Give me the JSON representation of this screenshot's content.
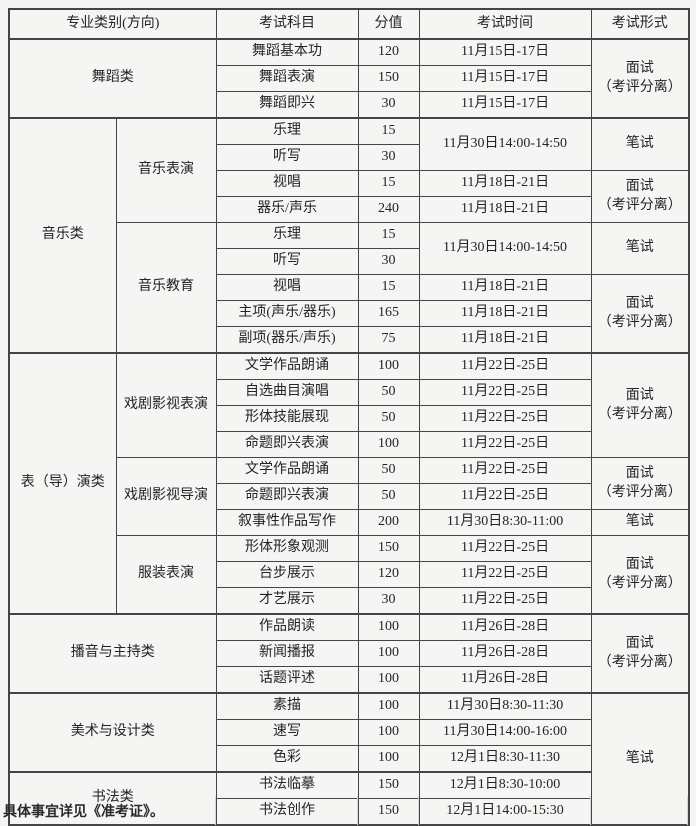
{
  "page": {
    "background_color": "#f5f5f3",
    "border_color": "#454545",
    "light_grid_color": "#d6d6d6",
    "text_color": "#242424"
  },
  "table": {
    "header": [
      {
        "col": "category",
        "text": "专业类别(方向)",
        "colspan": 2
      },
      {
        "col": "subject",
        "text": "考试科目"
      },
      {
        "col": "score",
        "text": "分值"
      },
      {
        "col": "time",
        "text": "考试时间"
      },
      {
        "col": "format",
        "text": "考试形式"
      }
    ],
    "rows": [
      {
        "group": true,
        "cells": [
          {
            "col": "category",
            "text": "舞蹈类",
            "colspan": 2,
            "rowspan": 3
          },
          {
            "col": "subject",
            "text": "舞蹈基本功"
          },
          {
            "col": "score",
            "text": "120"
          },
          {
            "col": "time",
            "text": "11月15日-17日"
          },
          {
            "col": "format",
            "text": "面试\n（考评分离）",
            "rowspan": 3
          }
        ]
      },
      {
        "cells": [
          {
            "col": "subject",
            "text": "舞蹈表演"
          },
          {
            "col": "score",
            "text": "150"
          },
          {
            "col": "time",
            "text": "11月15日-17日"
          }
        ]
      },
      {
        "cells": [
          {
            "col": "subject",
            "text": "舞蹈即兴"
          },
          {
            "col": "score",
            "text": "30"
          },
          {
            "col": "time",
            "text": "11月15日-17日"
          }
        ]
      },
      {
        "group": true,
        "cells": [
          {
            "col": "category",
            "text": "音乐类",
            "rowspan": 9
          },
          {
            "col": "direction",
            "text": "音乐表演",
            "rowspan": 4
          },
          {
            "col": "subject",
            "text": "乐理"
          },
          {
            "col": "score",
            "text": "15"
          },
          {
            "col": "time",
            "text": "11月30日14:00-14:50",
            "rowspan": 2
          },
          {
            "col": "format",
            "text": "笔试",
            "rowspan": 2
          }
        ]
      },
      {
        "cells": [
          {
            "col": "subject",
            "text": "听写"
          },
          {
            "col": "score",
            "text": "30"
          }
        ]
      },
      {
        "cells": [
          {
            "col": "subject",
            "text": "视唱"
          },
          {
            "col": "score",
            "text": "15"
          },
          {
            "col": "time",
            "text": "11月18日-21日"
          },
          {
            "col": "format",
            "text": "面试\n（考评分离）",
            "rowspan": 2
          }
        ]
      },
      {
        "cells": [
          {
            "col": "subject",
            "text": "器乐/声乐"
          },
          {
            "col": "score",
            "text": "240"
          },
          {
            "col": "time",
            "text": "11月18日-21日"
          }
        ]
      },
      {
        "cells": [
          {
            "col": "direction",
            "text": "音乐教育",
            "rowspan": 5
          },
          {
            "col": "subject",
            "text": "乐理"
          },
          {
            "col": "score",
            "text": "15"
          },
          {
            "col": "time",
            "text": "11月30日14:00-14:50",
            "rowspan": 2
          },
          {
            "col": "format",
            "text": "笔试",
            "rowspan": 2
          }
        ]
      },
      {
        "cells": [
          {
            "col": "subject",
            "text": "听写"
          },
          {
            "col": "score",
            "text": "30"
          }
        ]
      },
      {
        "cells": [
          {
            "col": "subject",
            "text": "视唱"
          },
          {
            "col": "score",
            "text": "15"
          },
          {
            "col": "time",
            "text": "11月18日-21日"
          },
          {
            "col": "format",
            "text": "面试\n（考评分离）",
            "rowspan": 3
          }
        ]
      },
      {
        "cells": [
          {
            "col": "subject",
            "text": "主项(声乐/器乐)"
          },
          {
            "col": "score",
            "text": "165"
          },
          {
            "col": "time",
            "text": "11月18日-21日"
          }
        ]
      },
      {
        "cells": [
          {
            "col": "subject",
            "text": "副项(器乐/声乐)"
          },
          {
            "col": "score",
            "text": "75"
          },
          {
            "col": "time",
            "text": "11月18日-21日"
          }
        ]
      },
      {
        "group": true,
        "cells": [
          {
            "col": "category",
            "text": "表（导）演类",
            "rowspan": 10
          },
          {
            "col": "direction",
            "text": "戏剧影视表演",
            "rowspan": 4
          },
          {
            "col": "subject",
            "text": "文学作品朗诵"
          },
          {
            "col": "score",
            "text": "100"
          },
          {
            "col": "time",
            "text": "11月22日-25日"
          },
          {
            "col": "format",
            "text": "面试\n（考评分离）",
            "rowspan": 4
          }
        ]
      },
      {
        "cells": [
          {
            "col": "subject",
            "text": "自选曲目演唱"
          },
          {
            "col": "score",
            "text": "50"
          },
          {
            "col": "time",
            "text": "11月22日-25日"
          }
        ]
      },
      {
        "cells": [
          {
            "col": "subject",
            "text": "形体技能展现"
          },
          {
            "col": "score",
            "text": "50"
          },
          {
            "col": "time",
            "text": "11月22日-25日"
          }
        ]
      },
      {
        "cells": [
          {
            "col": "subject",
            "text": "命题即兴表演"
          },
          {
            "col": "score",
            "text": "100"
          },
          {
            "col": "time",
            "text": "11月22日-25日"
          }
        ]
      },
      {
        "cells": [
          {
            "col": "direction",
            "text": "戏剧影视导演",
            "rowspan": 3
          },
          {
            "col": "subject",
            "text": "文学作品朗诵"
          },
          {
            "col": "score",
            "text": "50"
          },
          {
            "col": "time",
            "text": "11月22日-25日"
          },
          {
            "col": "format",
            "text": "面试\n（考评分离）",
            "rowspan": 2
          }
        ]
      },
      {
        "cells": [
          {
            "col": "subject",
            "text": "命题即兴表演"
          },
          {
            "col": "score",
            "text": "50"
          },
          {
            "col": "time",
            "text": "11月22日-25日"
          }
        ]
      },
      {
        "cells": [
          {
            "col": "subject",
            "text": "叙事性作品写作"
          },
          {
            "col": "score",
            "text": "200"
          },
          {
            "col": "time",
            "text": "11月30日8:30-11:00"
          },
          {
            "col": "format",
            "text": "笔试"
          }
        ]
      },
      {
        "cells": [
          {
            "col": "direction",
            "text": "服装表演",
            "rowspan": 3
          },
          {
            "col": "subject",
            "text": "形体形象观测"
          },
          {
            "col": "score",
            "text": "150"
          },
          {
            "col": "time",
            "text": "11月22日-25日"
          },
          {
            "col": "format",
            "text": "面试\n（考评分离）",
            "rowspan": 3
          }
        ]
      },
      {
        "cells": [
          {
            "col": "subject",
            "text": "台步展示"
          },
          {
            "col": "score",
            "text": "120"
          },
          {
            "col": "time",
            "text": "11月22日-25日"
          }
        ]
      },
      {
        "cells": [
          {
            "col": "subject",
            "text": "才艺展示"
          },
          {
            "col": "score",
            "text": "30"
          },
          {
            "col": "time",
            "text": "11月22日-25日"
          }
        ]
      },
      {
        "group": true,
        "cells": [
          {
            "col": "category",
            "text": "播音与主持类",
            "colspan": 2,
            "rowspan": 3
          },
          {
            "col": "subject",
            "text": "作品朗读"
          },
          {
            "col": "score",
            "text": "100"
          },
          {
            "col": "time",
            "text": "11月26日-28日"
          },
          {
            "col": "format",
            "text": "面试\n（考评分离）",
            "rowspan": 3
          }
        ]
      },
      {
        "cells": [
          {
            "col": "subject",
            "text": "新闻播报"
          },
          {
            "col": "score",
            "text": "100"
          },
          {
            "col": "time",
            "text": "11月26日-28日"
          }
        ]
      },
      {
        "cells": [
          {
            "col": "subject",
            "text": "话题评述"
          },
          {
            "col": "score",
            "text": "100"
          },
          {
            "col": "time",
            "text": "11月26日-28日"
          }
        ]
      },
      {
        "group": true,
        "cells": [
          {
            "col": "category",
            "text": "美术与设计类",
            "colspan": 2,
            "rowspan": 3
          },
          {
            "col": "subject",
            "text": "素描"
          },
          {
            "col": "score",
            "text": "100"
          },
          {
            "col": "time",
            "text": "11月30日8:30-11:30"
          },
          {
            "col": "format",
            "text": "笔试",
            "rowspan": 5
          }
        ]
      },
      {
        "cells": [
          {
            "col": "subject",
            "text": "速写"
          },
          {
            "col": "score",
            "text": "100"
          },
          {
            "col": "time",
            "text": "11月30日14:00-16:00"
          }
        ]
      },
      {
        "cells": [
          {
            "col": "subject",
            "text": "色彩"
          },
          {
            "col": "score",
            "text": "100"
          },
          {
            "col": "time",
            "text": "12月1日8:30-11:30"
          }
        ]
      },
      {
        "group": true,
        "cells": [
          {
            "col": "category",
            "text": "书法类",
            "colspan": 2,
            "rowspan": 2
          },
          {
            "col": "subject",
            "text": "书法临摹"
          },
          {
            "col": "score",
            "text": "150"
          },
          {
            "col": "time",
            "text": "12月1日8:30-10:00"
          }
        ]
      },
      {
        "cells": [
          {
            "col": "subject",
            "text": "书法创作"
          },
          {
            "col": "score",
            "text": "150"
          },
          {
            "col": "time",
            "text": "12月1日14:00-15:30"
          }
        ]
      }
    ]
  },
  "footnote": {
    "text": "具体事宜详见《准考证》。"
  }
}
